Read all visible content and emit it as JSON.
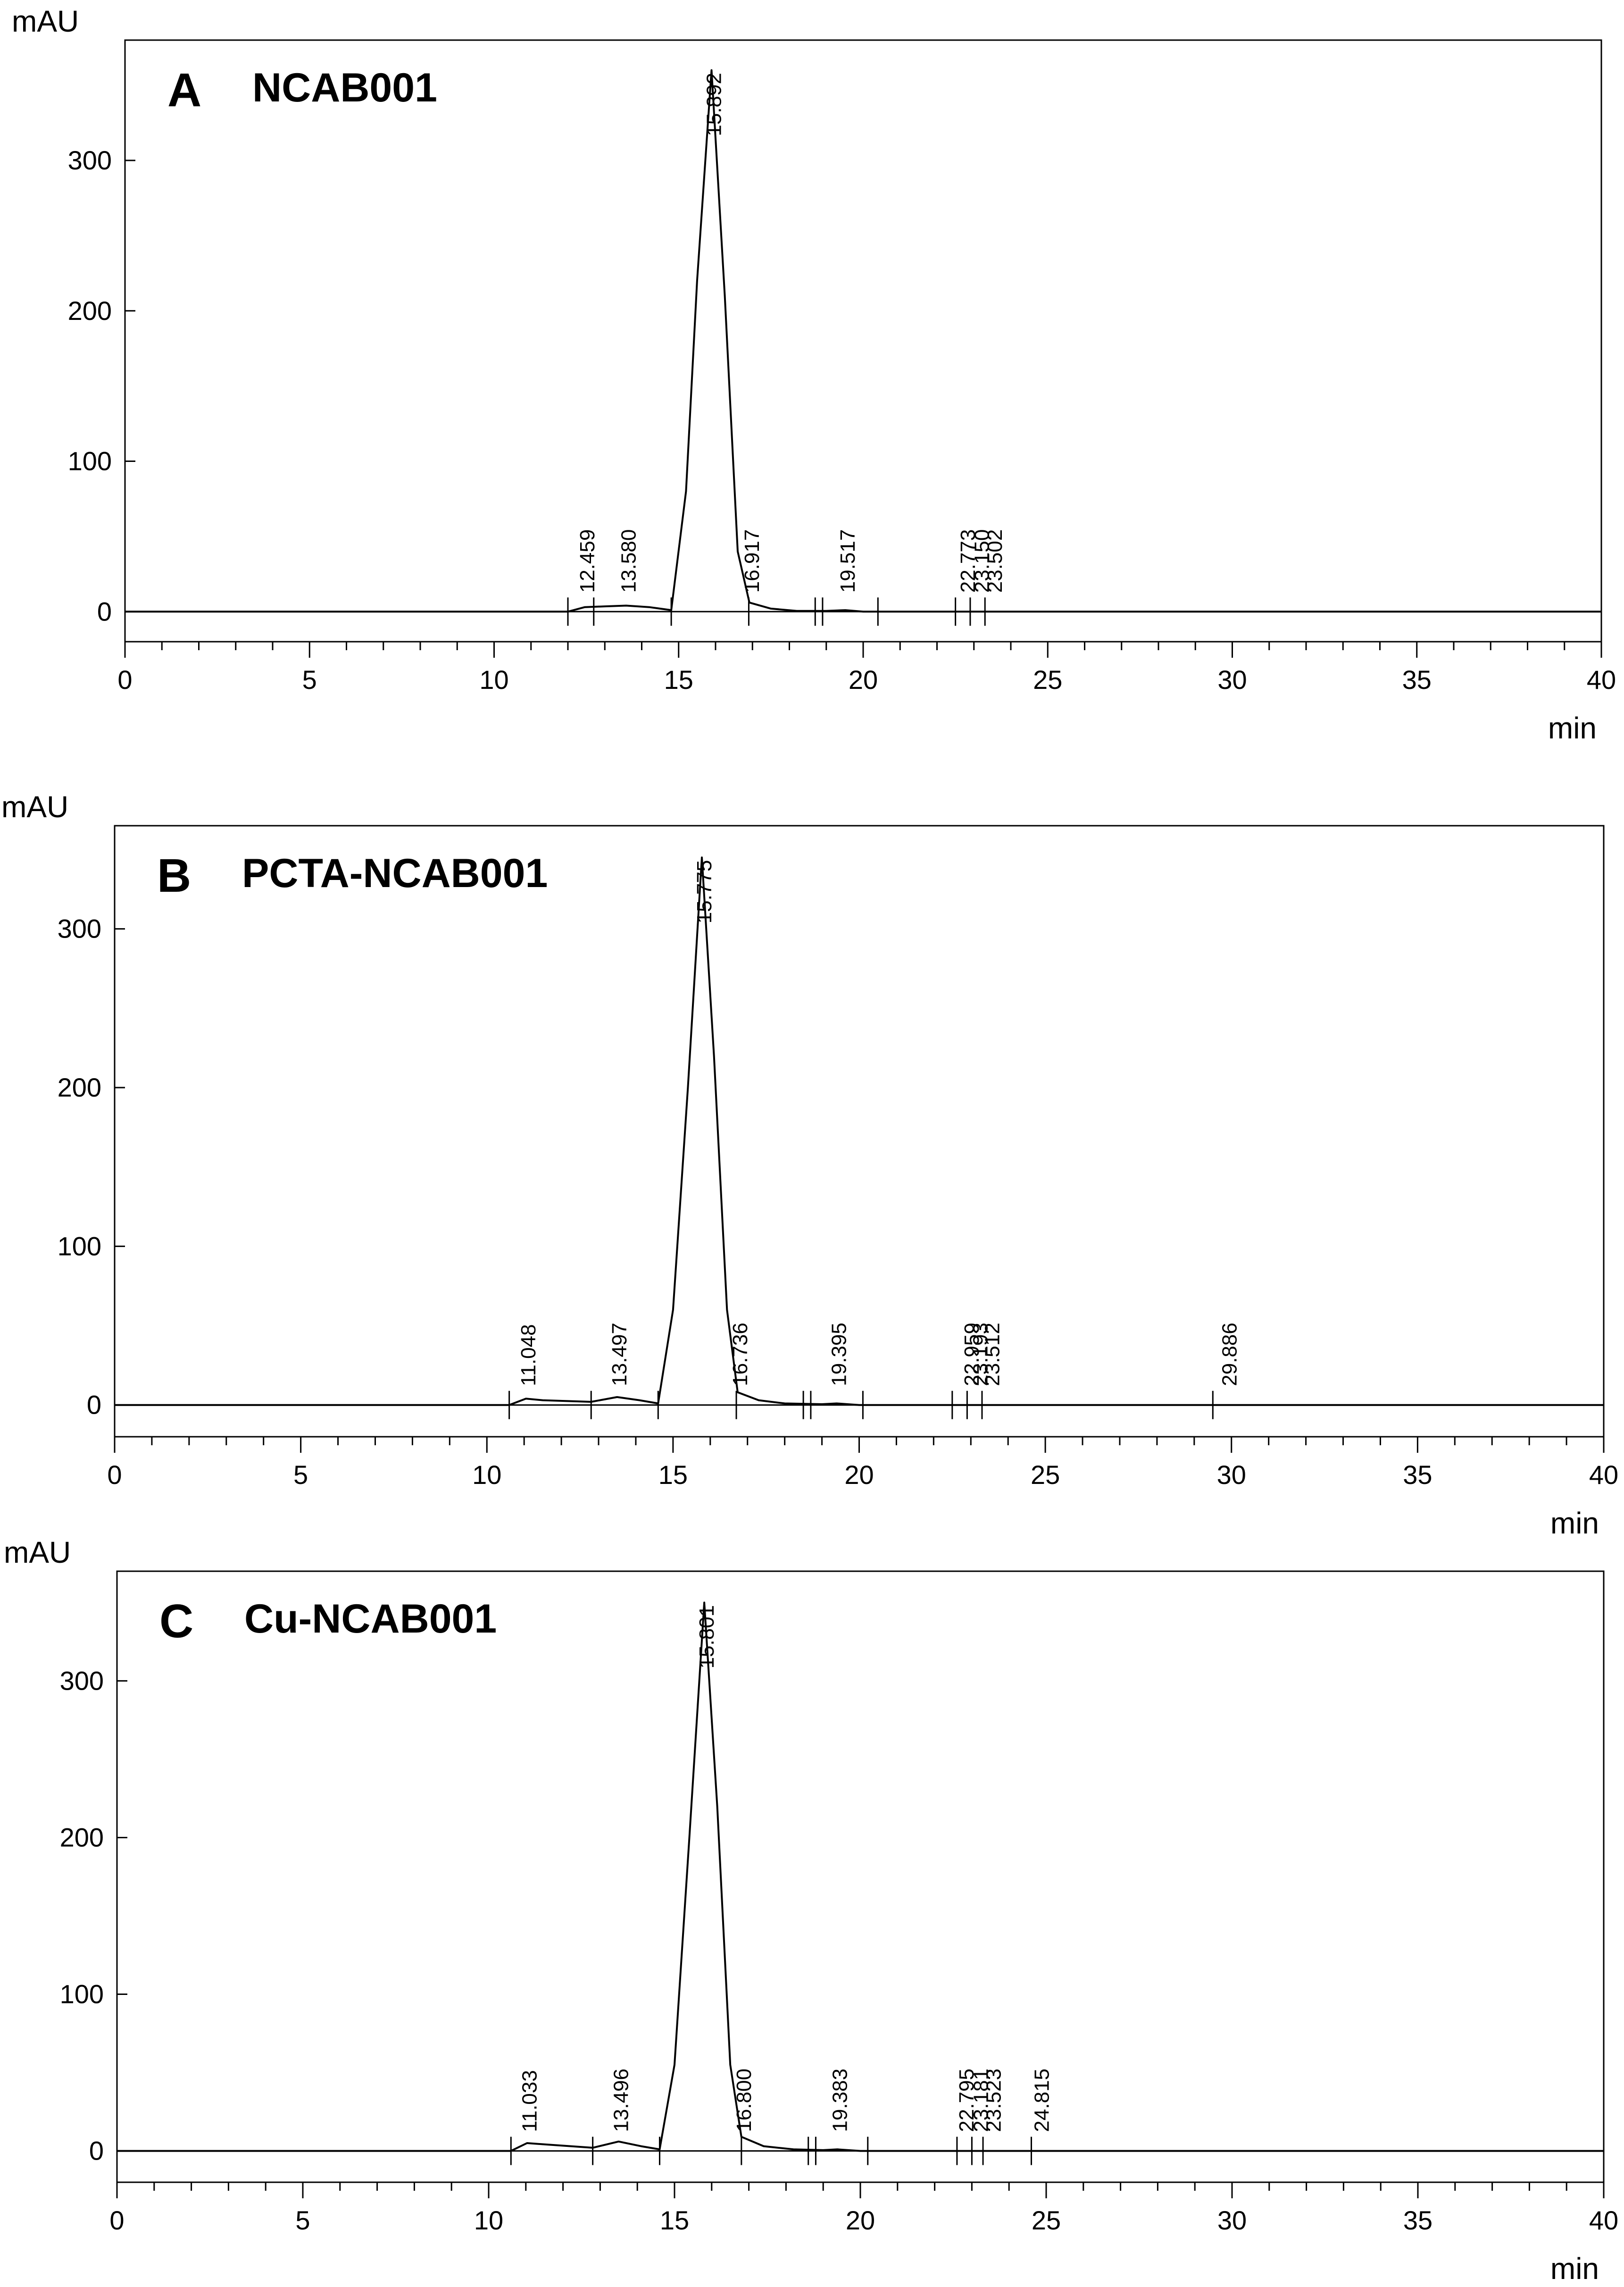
{
  "chart_data": [
    {
      "type": "line",
      "panel_letter": "A",
      "title": "NCAB001",
      "ylabel": "mAU",
      "xlabel": "min",
      "xlim": [
        0,
        40
      ],
      "ylim": [
        -20,
        380
      ],
      "x_ticks": [
        0,
        5,
        10,
        15,
        20,
        25,
        30,
        35,
        40
      ],
      "y_ticks": [
        0,
        100,
        200,
        300
      ],
      "grid": false,
      "series": [
        {
          "name": "NCAB001",
          "x": [
            0,
            12.0,
            12.459,
            13.0,
            13.58,
            14.2,
            14.8,
            15.2,
            15.5,
            15.892,
            16.25,
            16.6,
            16.917,
            17.5,
            18.2,
            19.0,
            19.517,
            20.0,
            40
          ],
          "values": [
            0,
            0,
            3,
            3.5,
            4,
            3,
            1,
            80,
            220,
            360,
            210,
            40,
            6,
            2,
            0.5,
            0.5,
            1,
            0,
            0
          ]
        }
      ],
      "peaks": [
        {
          "rt": 12.459,
          "label": "12.459"
        },
        {
          "rt": 13.58,
          "label": "13.580"
        },
        {
          "rt": 15.892,
          "label": "15.892"
        },
        {
          "rt": 16.917,
          "label": "16.917"
        },
        {
          "rt": 19.517,
          "label": "19.517"
        },
        {
          "rt": 22.773,
          "label": "22.773"
        },
        {
          "rt": 23.15,
          "label": "23.150"
        },
        {
          "rt": 23.502,
          "label": "23.502"
        }
      ],
      "markers": [
        12.0,
        12.7,
        14.8,
        16.9,
        18.7,
        18.9,
        20.4,
        22.5,
        22.9,
        23.3
      ]
    },
    {
      "type": "line",
      "panel_letter": "B",
      "title": "PCTA-NCAB001",
      "ylabel": "mAU",
      "xlabel": "min",
      "xlim": [
        0,
        40
      ],
      "ylim": [
        -20,
        365
      ],
      "x_ticks": [
        0,
        5,
        10,
        15,
        20,
        25,
        30,
        35,
        40
      ],
      "y_ticks": [
        0,
        100,
        200,
        300
      ],
      "grid": false,
      "series": [
        {
          "name": "PCTA-NCAB001",
          "x": [
            0,
            10.6,
            11.048,
            11.5,
            12.8,
            13.497,
            14.1,
            14.6,
            15.0,
            15.4,
            15.775,
            16.1,
            16.45,
            16.736,
            17.3,
            18.0,
            19.0,
            19.395,
            20.0,
            40
          ],
          "values": [
            0,
            0,
            4,
            3,
            2,
            5,
            3,
            1,
            60,
            200,
            345,
            220,
            60,
            8,
            3,
            1,
            0.5,
            1,
            0,
            0
          ]
        }
      ],
      "peaks": [
        {
          "rt": 11.048,
          "label": "11.048"
        },
        {
          "rt": 13.497,
          "label": "13.497"
        },
        {
          "rt": 15.775,
          "label": "15.775"
        },
        {
          "rt": 16.736,
          "label": "16.736"
        },
        {
          "rt": 19.395,
          "label": "19.395"
        },
        {
          "rt": 22.959,
          "label": "22.959"
        },
        {
          "rt": 23.193,
          "label": "23.193"
        },
        {
          "rt": 23.512,
          "label": "23.512"
        },
        {
          "rt": 29.886,
          "label": "29.886"
        }
      ],
      "markers": [
        10.6,
        12.8,
        14.6,
        16.7,
        18.5,
        18.7,
        20.1,
        22.5,
        22.9,
        23.3,
        29.5
      ]
    },
    {
      "type": "line",
      "panel_letter": "C",
      "title": "Cu-NCAB001",
      "ylabel": "mAU",
      "xlabel": "min",
      "xlim": [
        0,
        40
      ],
      "ylim": [
        -20,
        370
      ],
      "x_ticks": [
        0,
        5,
        10,
        15,
        20,
        25,
        30,
        35,
        40
      ],
      "y_ticks": [
        0,
        100,
        200,
        300
      ],
      "grid": false,
      "series": [
        {
          "name": "Cu-NCAB001",
          "x": [
            0,
            10.6,
            11.033,
            11.6,
            12.8,
            13.496,
            14.1,
            14.6,
            15.0,
            15.4,
            15.801,
            16.15,
            16.5,
            16.8,
            17.4,
            18.2,
            19.0,
            19.383,
            20.0,
            40
          ],
          "values": [
            0,
            0,
            5,
            4,
            2,
            6,
            3,
            1,
            55,
            200,
            350,
            220,
            55,
            9,
            3,
            1,
            0.5,
            1,
            0,
            0
          ]
        }
      ],
      "peaks": [
        {
          "rt": 11.033,
          "label": "11.033"
        },
        {
          "rt": 13.496,
          "label": "13.496"
        },
        {
          "rt": 15.801,
          "label": "15.801"
        },
        {
          "rt": 16.8,
          "label": "16.800"
        },
        {
          "rt": 19.383,
          "label": "19.383"
        },
        {
          "rt": 22.795,
          "label": "22.795"
        },
        {
          "rt": 23.181,
          "label": "23.181"
        },
        {
          "rt": 23.523,
          "label": "23.523"
        },
        {
          "rt": 24.815,
          "label": "24.815"
        }
      ],
      "markers": [
        10.6,
        12.8,
        14.6,
        16.8,
        18.6,
        18.8,
        20.2,
        22.6,
        23.0,
        23.3,
        24.6
      ]
    }
  ]
}
